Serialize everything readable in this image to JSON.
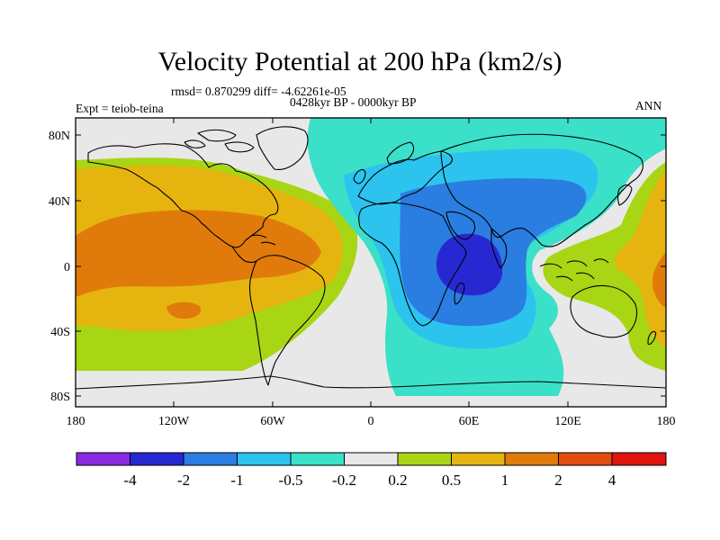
{
  "title": "Velocity Potential at 200 hPa (km2/s)",
  "stats": "rmsd= 0.870299 diff= -4.62261e-05",
  "period": "0428kyr BP - 0000kyr BP",
  "expt": "Expt = teiob-teina",
  "season": "ANN",
  "lat_labels": [
    "80N",
    "40N",
    "0",
    "40S",
    "80S"
  ],
  "lon_labels": [
    "180",
    "120W",
    "60W",
    "0",
    "60E",
    "120E",
    "180"
  ],
  "colorbar": {
    "labels": [
      "-4",
      "-2",
      "-1",
      "-0.5",
      "-0.2",
      "0.2",
      "0.5",
      "1",
      "2",
      "4"
    ],
    "colors": [
      "#8a2be2",
      "#2828d2",
      "#2a7de1",
      "#2cc3ef",
      "#3be0c8",
      "#e8e8e8",
      "#a8d514",
      "#e6b40f",
      "#e07b0b",
      "#e24d12",
      "#e0140f"
    ]
  }
}
